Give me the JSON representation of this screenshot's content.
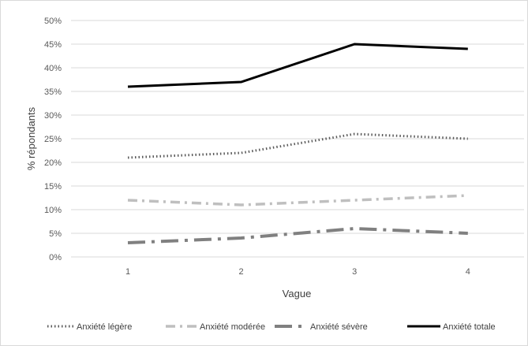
{
  "chart_data": {
    "type": "line",
    "title": "",
    "xlabel": "Vague",
    "ylabel": "% répondants",
    "x": [
      1,
      2,
      3,
      4
    ],
    "x_tick_labels": [
      "1",
      "2",
      "3",
      "4"
    ],
    "ylim": [
      0,
      50
    ],
    "y_tick_labels": [
      "0%",
      "5%",
      "10%",
      "15%",
      "20%",
      "25%",
      "30%",
      "35%",
      "40%",
      "45%",
      "50%"
    ],
    "grid": true,
    "legend_position": "bottom",
    "series": [
      {
        "name": "Anxiété légère",
        "values": [
          21,
          22,
          26,
          25
        ],
        "color": "#595959",
        "style": "dotted"
      },
      {
        "name": "Anxiété modérée",
        "values": [
          12,
          11,
          12,
          13
        ],
        "color": "#bfbfbf",
        "style": "dash-dot"
      },
      {
        "name": "Anxiété sévère",
        "values": [
          3,
          4,
          6,
          5
        ],
        "color": "#808080",
        "style": "long-dash-dot"
      },
      {
        "name": "Anxiété totale",
        "values": [
          36,
          37,
          45,
          44
        ],
        "color": "#000000",
        "style": "solid"
      }
    ]
  }
}
